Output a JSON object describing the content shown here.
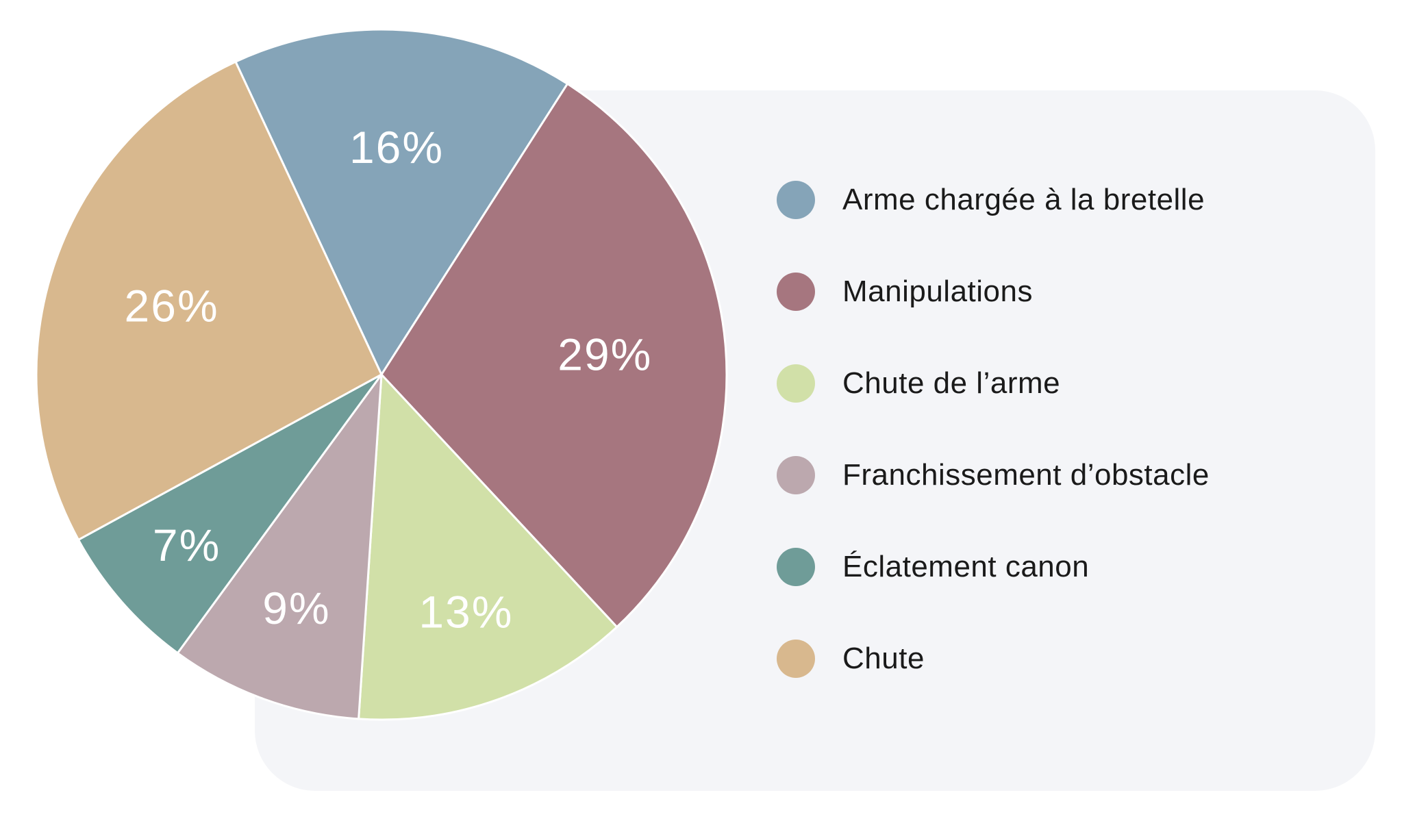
{
  "chart_data": {
    "type": "pie",
    "title": "",
    "direction": "clockwise",
    "start_angle_deg": -25,
    "legend_position": "right",
    "slices": [
      {
        "label": "Arme chargée à la bretelle",
        "value": 16,
        "display": "16%",
        "color": "#85a4b8"
      },
      {
        "label": "Manipulations",
        "value": 29,
        "display": "29%",
        "color": "#a6767f"
      },
      {
        "label": "Chute de l’arme",
        "value": 13,
        "display": "13%",
        "color": "#d1e0a8"
      },
      {
        "label": "Franchissement d’obstacle",
        "value": 9,
        "display": "9%",
        "color": "#bca8ae"
      },
      {
        "label": "Éclatement canon",
        "value": 7,
        "display": "7%",
        "color": "#6f9c98"
      },
      {
        "label": "Chute",
        "value": 26,
        "display": "26%",
        "color": "#d8b88e"
      }
    ]
  },
  "colors": {
    "page_background": "#ffffff",
    "panel_background": "#f4f5f8",
    "slice_border": "#ffffff",
    "percent_label_text": "#ffffff",
    "legend_text": "#1a1a1a"
  }
}
